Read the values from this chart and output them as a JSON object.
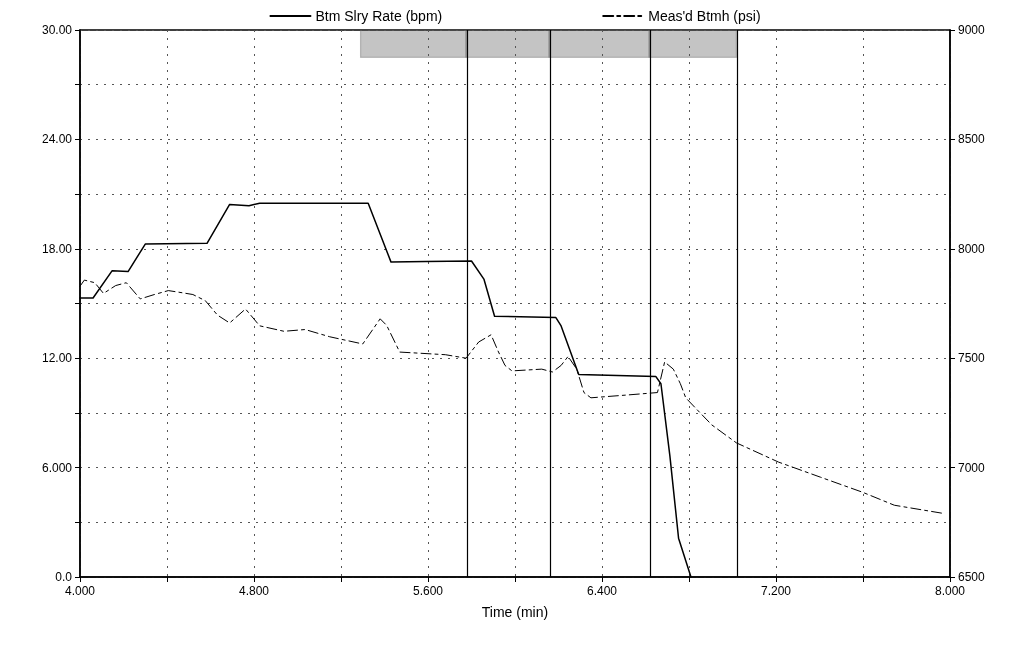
{
  "chart_data": {
    "type": "line",
    "xlabel": "Time (min)",
    "legend": "top",
    "grid": true,
    "marker": "none",
    "xlim": [
      4,
      8
    ],
    "xticks": [
      {
        "value": 4,
        "label": "4.000"
      },
      {
        "value": 4.4,
        "label": null
      },
      {
        "value": 4.8,
        "label": "4.800"
      },
      {
        "value": 5.2,
        "label": null
      },
      {
        "value": 5.6,
        "label": "5.600"
      },
      {
        "value": 6,
        "label": null
      },
      {
        "value": 6.4,
        "label": "6.400"
      },
      {
        "value": 6.8,
        "label": null
      },
      {
        "value": 7.2,
        "label": "7.200"
      },
      {
        "value": 7.6,
        "label": null
      },
      {
        "value": 8,
        "label": "8.000"
      }
    ],
    "ylim": [
      0,
      30
    ],
    "yticks": [
      {
        "value": 0,
        "label": "0.0"
      },
      {
        "value": 3,
        "label": null
      },
      {
        "value": 6,
        "label": "6.000"
      },
      {
        "value": 9,
        "label": null
      },
      {
        "value": 12,
        "label": "12.00"
      },
      {
        "value": 15,
        "label": null
      },
      {
        "value": 18,
        "label": "18.00"
      },
      {
        "value": 21,
        "label": null
      },
      {
        "value": 24,
        "label": "24.00"
      },
      {
        "value": 27,
        "label": null
      },
      {
        "value": 30,
        "label": "30.00"
      }
    ],
    "y2lim": [
      6500,
      9000
    ],
    "y2ticks": [
      6500,
      7000,
      7500,
      8000,
      8500,
      9000
    ],
    "series": [
      {
        "name": "Btm Slry Rate (bpm)",
        "color": "#000000",
        "line_style": "solid",
        "x": [
          4.0,
          4.06,
          4.148,
          4.221,
          4.3,
          4.584,
          4.688,
          4.777,
          4.826,
          5.325,
          5.43,
          5.59,
          5.8,
          5.857,
          5.906,
          6.188,
          6.212,
          6.293,
          6.647,
          6.671,
          6.712,
          6.752,
          6.809
        ],
        "values": [
          15.3,
          15.3,
          16.8,
          16.75,
          18.26,
          18.3,
          20.43,
          20.36,
          20.5,
          20.5,
          17.27,
          17.3,
          17.33,
          16.34,
          14.3,
          14.23,
          13.77,
          11.1,
          11.0,
          10.6,
          6.66,
          2.13,
          0
        ]
      },
      {
        "name": "Meas'd Btmh (psi)",
        "color": "#000000",
        "line_style": "dashed",
        "axis": "y2",
        "x": [
          4.0,
          4.02,
          4.068,
          4.108,
          4.164,
          4.213,
          4.277,
          4.342,
          4.406,
          4.471,
          4.519,
          4.576,
          4.632,
          4.688,
          4.761,
          4.826,
          4.938,
          5.035,
          5.148,
          5.3,
          5.38,
          5.41,
          5.47,
          5.68,
          5.775,
          5.833,
          5.89,
          5.922,
          5.954,
          5.986,
          6.123,
          6.172,
          6.212,
          6.244,
          6.284,
          6.317,
          6.349,
          6.518,
          6.655,
          6.688,
          6.728,
          6.76,
          6.785,
          6.833,
          6.905,
          7.018,
          7.212,
          7.405,
          7.599,
          7.744,
          7.961
        ],
        "values": [
          7829,
          7857,
          7845,
          7796,
          7832,
          7845,
          7771,
          7791,
          7809,
          7799,
          7791,
          7763,
          7697,
          7661,
          7725,
          7648,
          7623,
          7631,
          7598,
          7565,
          7680,
          7650,
          7528,
          7516,
          7500,
          7574,
          7607,
          7533,
          7467,
          7442,
          7450,
          7437,
          7467,
          7508,
          7450,
          7343,
          7319,
          7332,
          7343,
          7483,
          7450,
          7384,
          7319,
          7269,
          7195,
          7113,
          7025,
          6956,
          6887,
          6828,
          6792
        ]
      }
    ],
    "ref_lines": [
      {
        "axis": "x",
        "value": 5.775,
        "color": "#000000"
      },
      {
        "axis": "x",
        "value": 6.157,
        "color": "#000000"
      },
      {
        "axis": "x",
        "value": 6.617,
        "color": "#000000"
      },
      {
        "axis": "x",
        "value": 7.018,
        "color": "#000000"
      }
    ],
    "bands": [
      {
        "axis": "x",
        "from": 5.29,
        "to": 5.775,
        "color": "#555555"
      },
      {
        "axis": "x",
        "from": 5.775,
        "to": 6.157,
        "color": "#555555"
      },
      {
        "axis": "x",
        "from": 6.157,
        "to": 6.617,
        "color": "#555555"
      },
      {
        "axis": "x",
        "from": 6.617,
        "to": 7.018,
        "color": "#555555"
      }
    ]
  }
}
